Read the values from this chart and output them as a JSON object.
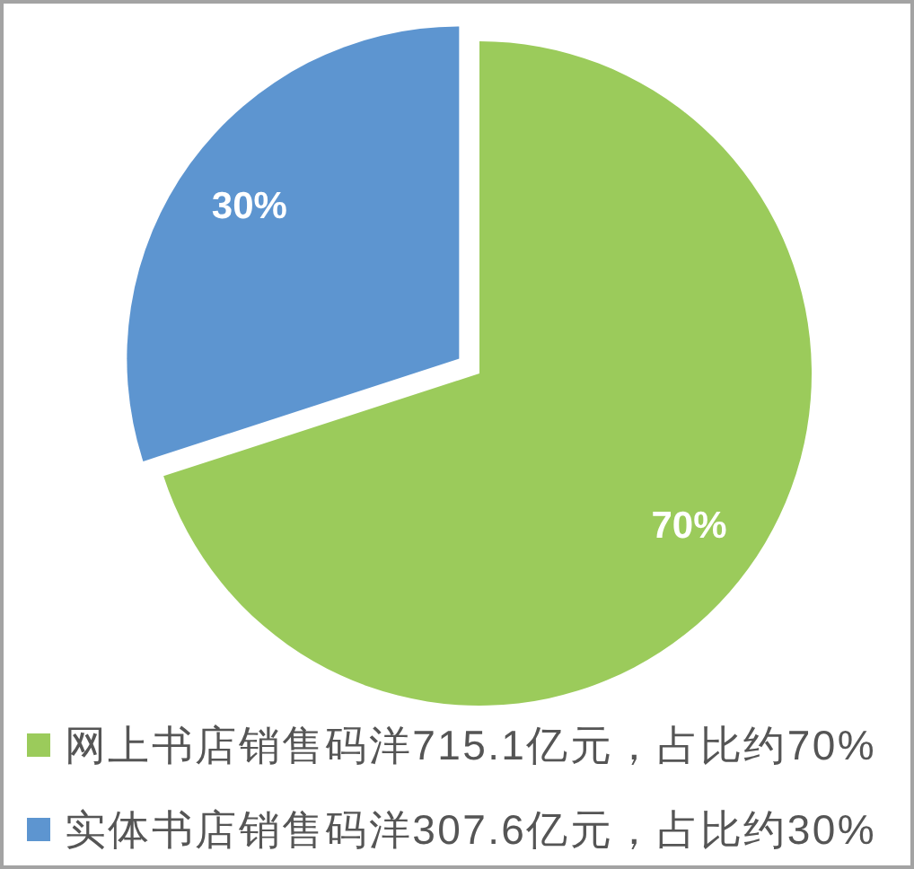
{
  "chart_data": {
    "type": "pie",
    "categories": [
      "网上书店销售码洋715.1亿元，占比约70%",
      "实体书店销售码洋307.6亿元，占比约30%"
    ],
    "values": [
      70,
      30
    ],
    "colors": [
      "#9bcb5b",
      "#5d95d0"
    ],
    "value_labels": [
      "70%",
      "30%"
    ],
    "legend": "bottom"
  }
}
